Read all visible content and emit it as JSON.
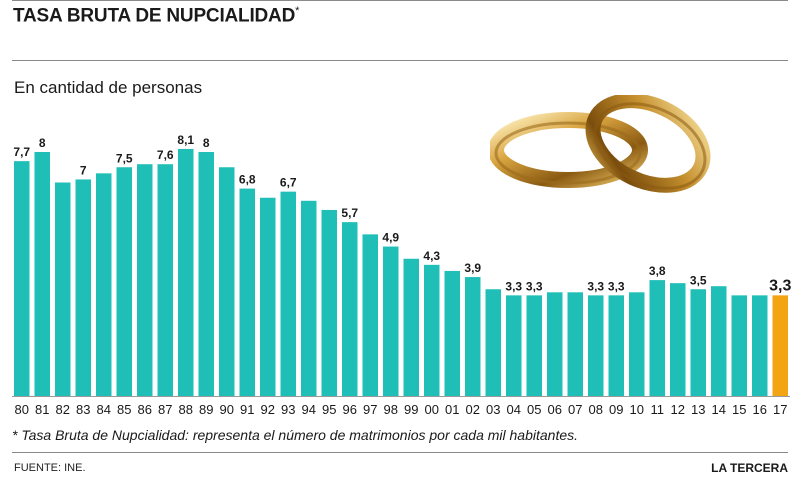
{
  "header": {
    "title": "TASA BRUTA DE NUPCIALIDAD",
    "title_mark": "*",
    "subtitle": "En cantidad de personas"
  },
  "footer": {
    "footnote": "* Tasa Bruta de Nupcialidad: representa el número de matrimonios por cada mil habitantes.",
    "source": "FUENTE: INE.",
    "brand": "LA TERCERA"
  },
  "colors": {
    "bar": "#1fbfb8",
    "highlight": "#f2a413",
    "text": "#1a1a1a"
  },
  "chart_data": {
    "type": "bar",
    "categories": [
      "80",
      "81",
      "82",
      "83",
      "84",
      "85",
      "86",
      "87",
      "88",
      "89",
      "90",
      "91",
      "92",
      "93",
      "94",
      "95",
      "96",
      "97",
      "98",
      "99",
      "00",
      "01",
      "02",
      "03",
      "04",
      "05",
      "06",
      "07",
      "08",
      "09",
      "10",
      "11",
      "12",
      "13",
      "14",
      "15",
      "16",
      "17"
    ],
    "values": [
      7.7,
      8,
      7,
      7.1,
      7.3,
      7.5,
      7.6,
      7.6,
      8.1,
      8,
      7.5,
      6.8,
      6.5,
      6.7,
      6.4,
      6.1,
      5.7,
      5.3,
      4.9,
      4.5,
      4.3,
      4.1,
      3.9,
      3.5,
      3.3,
      3.3,
      3.4,
      3.4,
      3.3,
      3.3,
      3.4,
      3.8,
      3.7,
      3.5,
      3.6,
      3.3,
      3.3,
      3.3
    ],
    "data_labels": [
      "7,7",
      "8",
      "",
      "7",
      "",
      "7,5",
      "",
      "7,6",
      "8,1",
      "8",
      "",
      "6,8",
      "",
      "6,7",
      "",
      "",
      "5,7",
      "",
      "4,9",
      "",
      "4,3",
      "",
      "3,9",
      "",
      "3,3",
      "3,3",
      "",
      "",
      "3,3",
      "3,3",
      "",
      "3,8",
      "",
      "3,5",
      "",
      "",
      "",
      "3,3"
    ],
    "highlight_index": 37,
    "ylim": [
      0,
      8.5
    ],
    "grid": false,
    "legend": "none"
  }
}
